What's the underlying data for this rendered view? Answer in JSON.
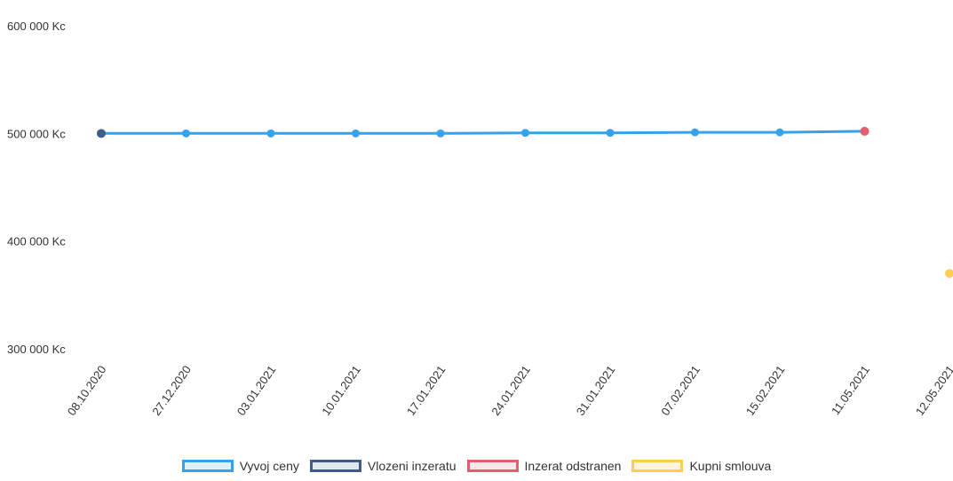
{
  "chart_data": {
    "type": "line",
    "title": "",
    "xlabel": "",
    "ylabel": "",
    "ylim": [
      300000,
      600000
    ],
    "grid": false,
    "legend_position": "bottom",
    "y_ticks": [
      {
        "value": 600000,
        "label": "600 000 Kc"
      },
      {
        "value": 500000,
        "label": "500 000 Kc"
      },
      {
        "value": 400000,
        "label": "400 000 Kc"
      },
      {
        "value": 300000,
        "label": "300 000 Kc"
      }
    ],
    "categories": [
      "08.10.2020",
      "27.12.2020",
      "03.01.2021",
      "10.01.2021",
      "17.01.2021",
      "24.01.2021",
      "31.01.2021",
      "07.02.2021",
      "15.02.2021",
      "11.05.2021",
      "12.05.2021"
    ],
    "series": [
      {
        "name": "Vyvoj ceny",
        "color": "#36a2eb",
        "values": [
          500000,
          500000,
          500000,
          500000,
          500000,
          500500,
          500500,
          501000,
          501000,
          502000,
          null
        ]
      },
      {
        "name": "Vlozeni inzeratu",
        "color": "#3e5c8a",
        "points": [
          {
            "x": "08.10.2020",
            "y": 500000
          }
        ]
      },
      {
        "name": "Inzerat odstranen",
        "color": "#e0606e",
        "points": [
          {
            "x": "11.05.2021",
            "y": 502000
          }
        ]
      },
      {
        "name": "Kupni smlouva",
        "color": "#ffcd56",
        "points": [
          {
            "x": "12.05.2021",
            "y": 370000
          }
        ]
      }
    ]
  }
}
